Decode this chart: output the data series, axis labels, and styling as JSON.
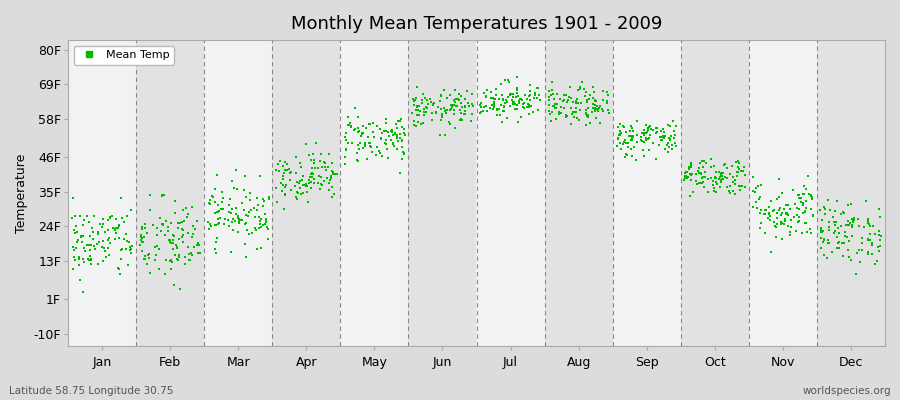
{
  "title": "Monthly Mean Temperatures 1901 - 2009",
  "ylabel": "Temperature",
  "xlabel_bottom_left": "Latitude 58.75 Longitude 30.75",
  "xlabel_bottom_right": "worldspecies.org",
  "legend_label": "Mean Temp",
  "dot_color": "#00BB00",
  "background_color": "#DCDCDC",
  "plot_bg_color_light": "#F2F2F2",
  "plot_bg_color_dark": "#E2E2E2",
  "dashed_line_color": "#888888",
  "ytick_labels": [
    "-10F",
    "1F",
    "13F",
    "24F",
    "35F",
    "46F",
    "58F",
    "69F",
    "80F"
  ],
  "ytick_values": [
    -10,
    1,
    13,
    24,
    35,
    46,
    58,
    69,
    80
  ],
  "ylim": [
    -14,
    83
  ],
  "months": [
    "Jan",
    "Feb",
    "Mar",
    "Apr",
    "May",
    "Jun",
    "Jul",
    "Aug",
    "Sep",
    "Oct",
    "Nov",
    "Dec"
  ],
  "num_years": 109,
  "monthly_params": {
    "Jan": {
      "mean": 19,
      "std": 6,
      "min": -12,
      "max": 33
    },
    "Feb": {
      "mean": 19,
      "std": 7,
      "min": -8,
      "max": 34
    },
    "Mar": {
      "mean": 28,
      "std": 5,
      "min": 13,
      "max": 43
    },
    "Apr": {
      "mean": 40,
      "std": 4,
      "min": 27,
      "max": 51
    },
    "May": {
      "mean": 52,
      "std": 4,
      "min": 41,
      "max": 62
    },
    "Jun": {
      "mean": 61,
      "std": 3,
      "min": 53,
      "max": 71
    },
    "Jul": {
      "mean": 64,
      "std": 3,
      "min": 57,
      "max": 73
    },
    "Aug": {
      "mean": 62,
      "std": 3,
      "min": 55,
      "max": 70
    },
    "Sep": {
      "mean": 52,
      "std": 3,
      "min": 44,
      "max": 60
    },
    "Oct": {
      "mean": 40,
      "std": 3,
      "min": 32,
      "max": 49
    },
    "Nov": {
      "mean": 29,
      "std": 5,
      "min": 16,
      "max": 41
    },
    "Dec": {
      "mean": 22,
      "std": 5,
      "min": 8,
      "max": 35
    }
  },
  "marker_size": 4,
  "figsize": [
    9.0,
    4.0
  ],
  "dpi": 100
}
